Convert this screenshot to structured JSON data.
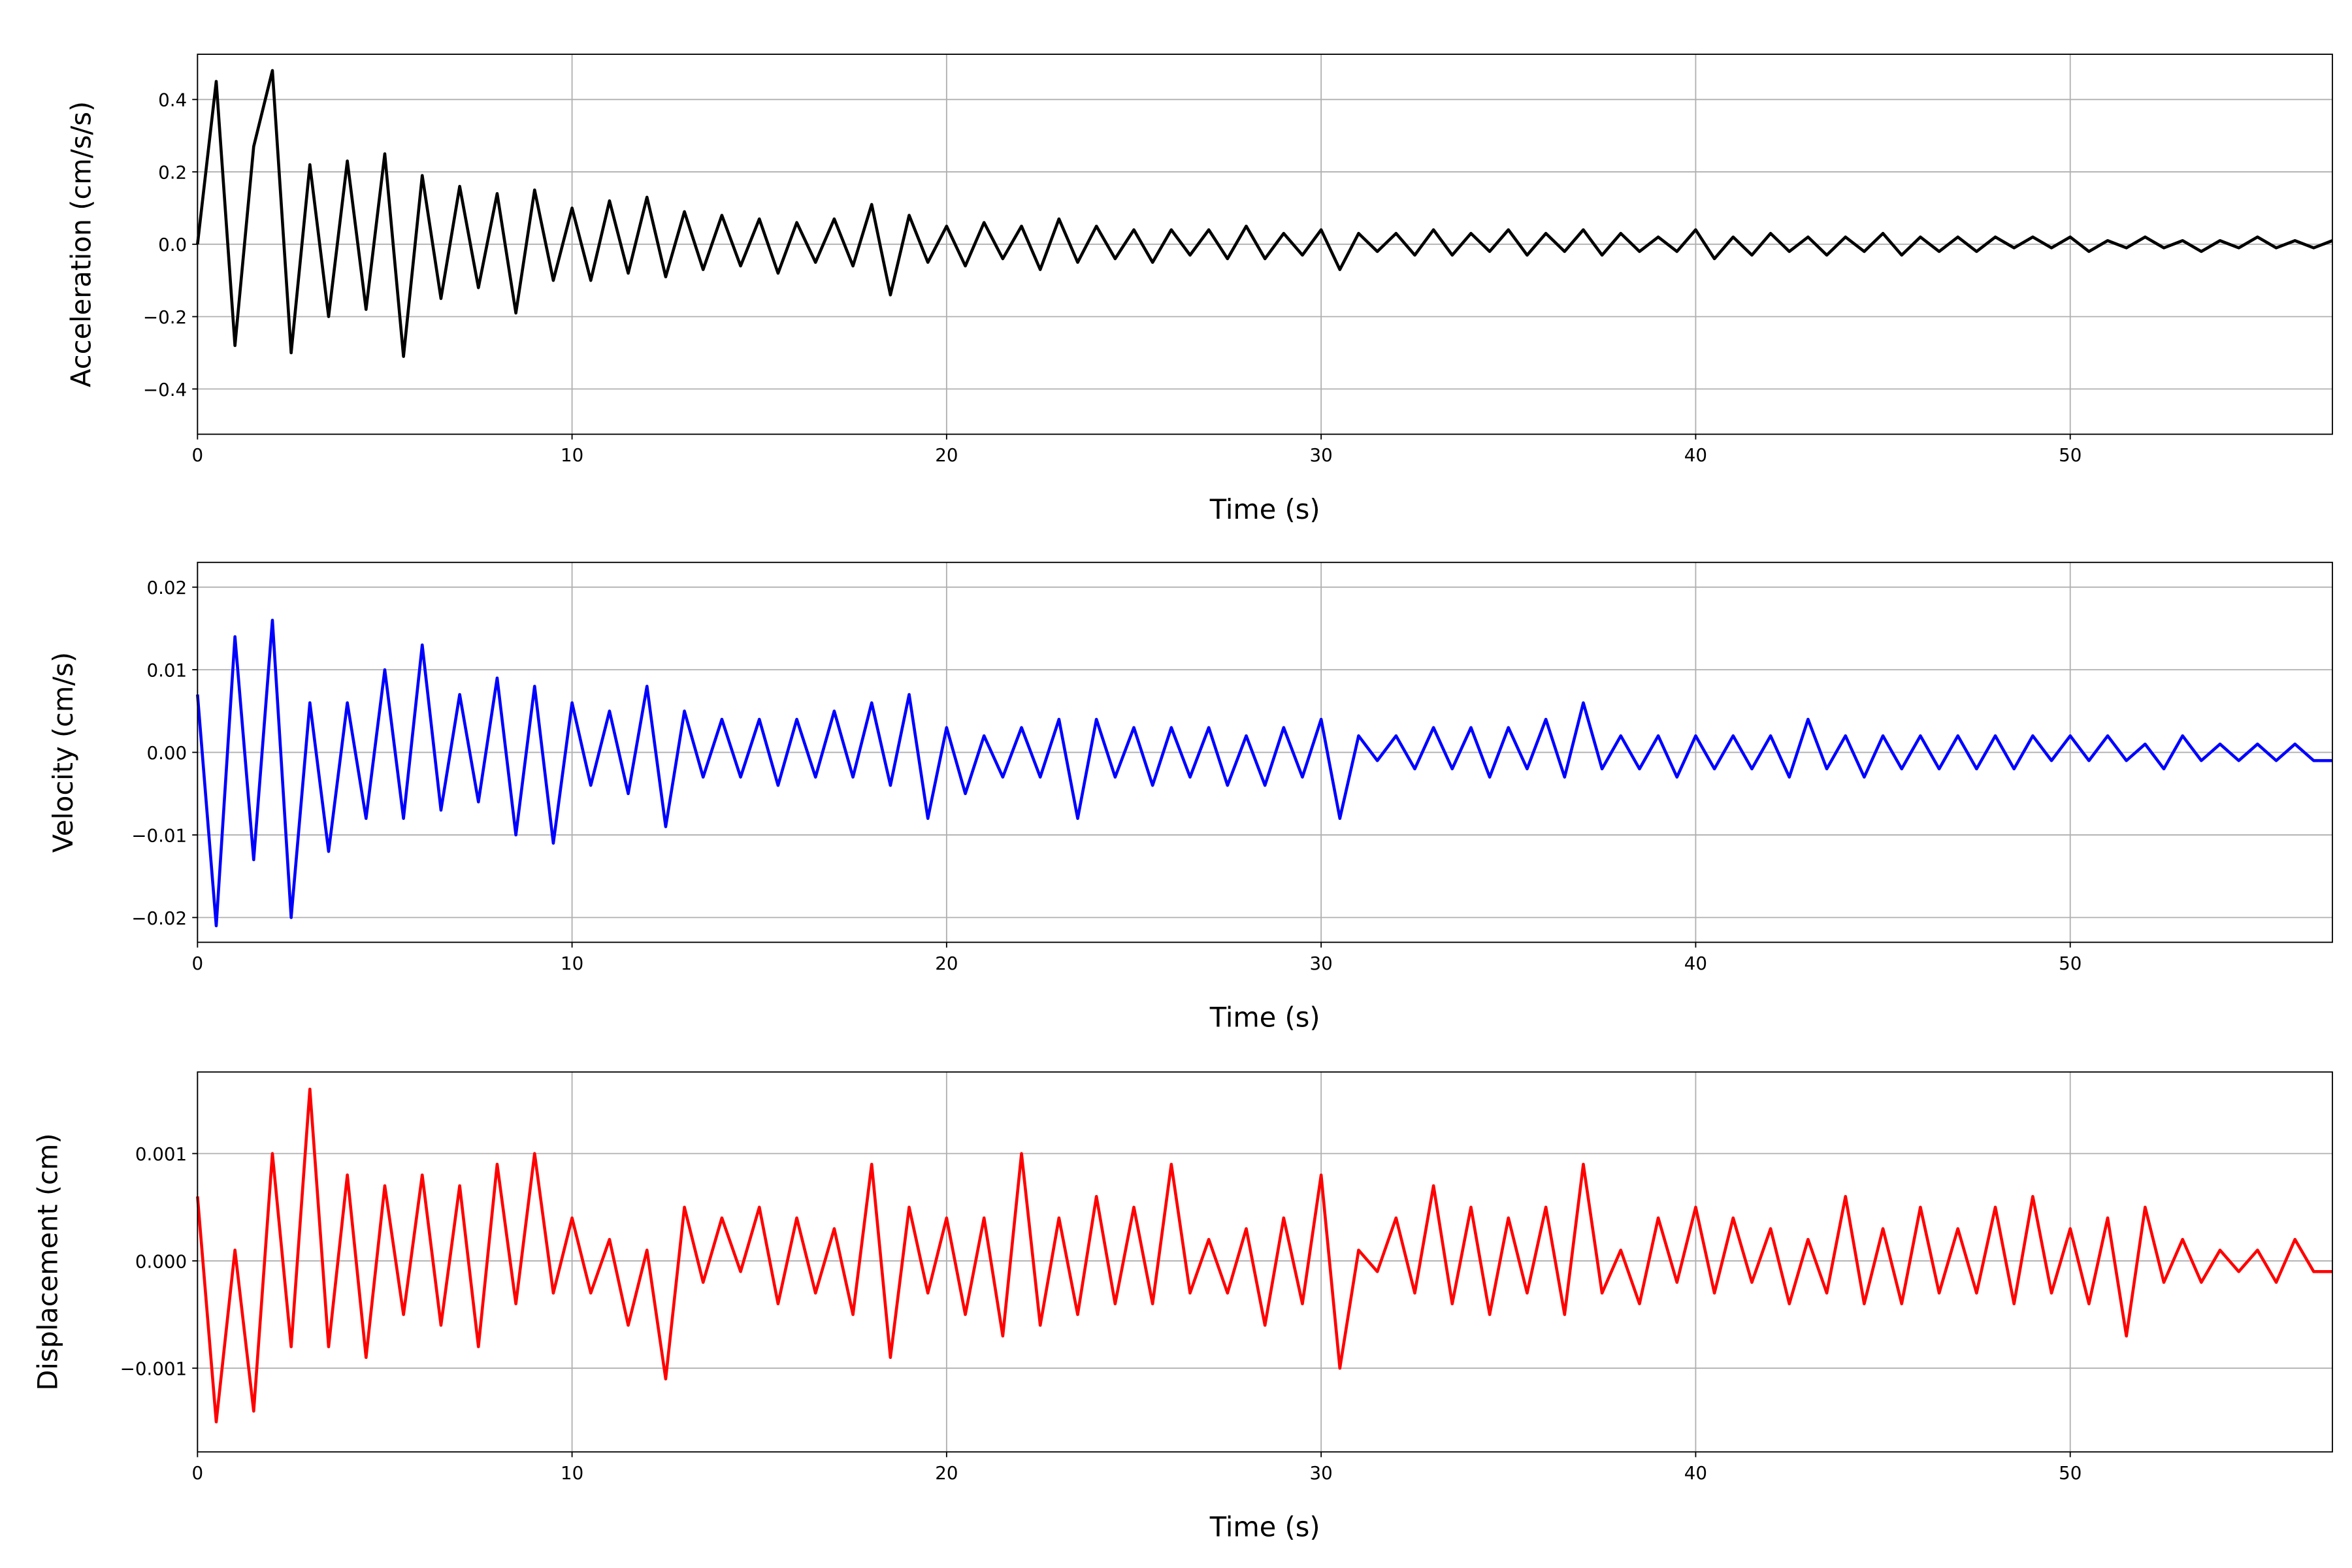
{
  "chart_data": [
    {
      "type": "line",
      "xlabel": "Time (s)",
      "ylabel": "Acceleration (cm/s/s)",
      "color": "#000000",
      "grid": true,
      "xlim": [
        0,
        57
      ],
      "xticks": [
        0,
        10,
        20,
        30,
        40,
        50
      ],
      "ylim": [
        -0.525,
        0.525
      ],
      "yticks": [
        {
          "value": -0.4,
          "label": "−0.4"
        },
        {
          "value": -0.2,
          "label": "−0.2"
        },
        {
          "value": 0,
          "label": "0.0"
        },
        {
          "value": 0.2,
          "label": "0.2"
        },
        {
          "value": 0.4,
          "label": "0.4"
        }
      ],
      "x": [
        0,
        0.5,
        1,
        1.5,
        2,
        2.5,
        3,
        3.5,
        4,
        4.5,
        5,
        5.5,
        6,
        6.5,
        7,
        7.5,
        8,
        8.5,
        9,
        9.5,
        10,
        10.5,
        11,
        11.5,
        12,
        12.5,
        13,
        13.5,
        14,
        14.5,
        15,
        15.5,
        16,
        16.5,
        17,
        17.5,
        18,
        18.5,
        19,
        19.5,
        20,
        20.5,
        21,
        21.5,
        22,
        22.5,
        23,
        23.5,
        24,
        24.5,
        25,
        25.5,
        26,
        26.5,
        27,
        27.5,
        28,
        28.5,
        29,
        29.5,
        30,
        30.5,
        31,
        31.5,
        32,
        32.5,
        33,
        33.5,
        34,
        34.5,
        35,
        35.5,
        36,
        36.5,
        37,
        37.5,
        38,
        38.5,
        39,
        39.5,
        40,
        40.5,
        41,
        41.5,
        42,
        42.5,
        43,
        43.5,
        44,
        44.5,
        45,
        45.5,
        46,
        46.5,
        47,
        47.5,
        48,
        48.5,
        49,
        49.5,
        50,
        50.5,
        51,
        51.5,
        52,
        52.5,
        53,
        53.5,
        54,
        54.5,
        55,
        55.5,
        56,
        56.5,
        57
      ],
      "values": [
        0.0,
        0.45,
        -0.28,
        0.27,
        0.48,
        -0.3,
        0.22,
        -0.2,
        0.23,
        -0.18,
        0.25,
        -0.31,
        0.19,
        -0.15,
        0.16,
        -0.12,
        0.14,
        -0.19,
        0.15,
        -0.1,
        0.1,
        -0.1,
        0.12,
        -0.08,
        0.13,
        -0.09,
        0.09,
        -0.07,
        0.08,
        -0.06,
        0.07,
        -0.08,
        0.06,
        -0.05,
        0.07,
        -0.06,
        0.11,
        -0.14,
        0.08,
        -0.05,
        0.05,
        -0.06,
        0.06,
        -0.04,
        0.05,
        -0.07,
        0.07,
        -0.05,
        0.05,
        -0.04,
        0.04,
        -0.05,
        0.04,
        -0.03,
        0.04,
        -0.04,
        0.05,
        -0.04,
        0.03,
        -0.03,
        0.04,
        -0.07,
        0.03,
        -0.02,
        0.03,
        -0.03,
        0.04,
        -0.03,
        0.03,
        -0.02,
        0.04,
        -0.03,
        0.03,
        -0.02,
        0.04,
        -0.03,
        0.03,
        -0.02,
        0.02,
        -0.02,
        0.04,
        -0.04,
        0.02,
        -0.03,
        0.03,
        -0.02,
        0.02,
        -0.03,
        0.02,
        -0.02,
        0.03,
        -0.03,
        0.02,
        -0.02,
        0.02,
        -0.02,
        0.02,
        -0.01,
        0.02,
        -0.01,
        0.02,
        -0.02,
        0.01,
        -0.01,
        0.02,
        -0.01,
        0.01,
        -0.02,
        0.01,
        -0.01,
        0.02,
        -0.01,
        0.01,
        -0.01,
        0.01
      ]
    },
    {
      "type": "line",
      "xlabel": "Time (s)",
      "ylabel": "Velocity (cm/s)",
      "color": "#0000ff",
      "grid": true,
      "xlim": [
        0,
        57
      ],
      "xticks": [
        0,
        10,
        20,
        30,
        40,
        50
      ],
      "ylim": [
        -0.023,
        0.023
      ],
      "yticks": [
        {
          "value": -0.02,
          "label": "−0.02"
        },
        {
          "value": -0.01,
          "label": "−0.01"
        },
        {
          "value": 0,
          "label": "0.00"
        },
        {
          "value": 0.01,
          "label": "0.01"
        },
        {
          "value": 0.02,
          "label": "0.02"
        }
      ],
      "x": [
        0,
        0.5,
        1,
        1.5,
        2,
        2.5,
        3,
        3.5,
        4,
        4.5,
        5,
        5.5,
        6,
        6.5,
        7,
        7.5,
        8,
        8.5,
        9,
        9.5,
        10,
        10.5,
        11,
        11.5,
        12,
        12.5,
        13,
        13.5,
        14,
        14.5,
        15,
        15.5,
        16,
        16.5,
        17,
        17.5,
        18,
        18.5,
        19,
        19.5,
        20,
        20.5,
        21,
        21.5,
        22,
        22.5,
        23,
        23.5,
        24,
        24.5,
        25,
        25.5,
        26,
        26.5,
        27,
        27.5,
        28,
        28.5,
        29,
        29.5,
        30,
        30.5,
        31,
        31.5,
        32,
        32.5,
        33,
        33.5,
        34,
        34.5,
        35,
        35.5,
        36,
        36.5,
        37,
        37.5,
        38,
        38.5,
        39,
        39.5,
        40,
        40.5,
        41,
        41.5,
        42,
        42.5,
        43,
        43.5,
        44,
        44.5,
        45,
        45.5,
        46,
        46.5,
        47,
        47.5,
        48,
        48.5,
        49,
        49.5,
        50,
        50.5,
        51,
        51.5,
        52,
        52.5,
        53,
        53.5,
        54,
        54.5,
        55,
        55.5,
        56,
        56.5,
        57
      ],
      "values": [
        0.007,
        -0.021,
        0.014,
        -0.013,
        0.016,
        -0.02,
        0.006,
        -0.012,
        0.006,
        -0.008,
        0.01,
        -0.008,
        0.013,
        -0.007,
        0.007,
        -0.006,
        0.009,
        -0.01,
        0.008,
        -0.011,
        0.006,
        -0.004,
        0.005,
        -0.005,
        0.008,
        -0.009,
        0.005,
        -0.003,
        0.004,
        -0.003,
        0.004,
        -0.004,
        0.004,
        -0.003,
        0.005,
        -0.003,
        0.006,
        -0.004,
        0.007,
        -0.008,
        0.003,
        -0.005,
        0.002,
        -0.003,
        0.003,
        -0.003,
        0.004,
        -0.008,
        0.004,
        -0.003,
        0.003,
        -0.004,
        0.003,
        -0.003,
        0.003,
        -0.004,
        0.002,
        -0.004,
        0.003,
        -0.003,
        0.004,
        -0.008,
        0.002,
        -0.001,
        0.002,
        -0.002,
        0.003,
        -0.002,
        0.003,
        -0.003,
        0.003,
        -0.002,
        0.004,
        -0.003,
        0.006,
        -0.002,
        0.002,
        -0.002,
        0.002,
        -0.003,
        0.002,
        -0.002,
        0.002,
        -0.002,
        0.002,
        -0.003,
        0.004,
        -0.002,
        0.002,
        -0.003,
        0.002,
        -0.002,
        0.002,
        -0.002,
        0.002,
        -0.002,
        0.002,
        -0.002,
        0.002,
        -0.001,
        0.002,
        -0.001,
        0.002,
        -0.001,
        0.001,
        -0.002,
        0.002,
        -0.001,
        0.001,
        -0.001,
        0.001,
        -0.001,
        0.001,
        -0.001,
        -0.001
      ]
    },
    {
      "type": "line",
      "xlabel": "Time (s)",
      "ylabel": "Displacement (cm)",
      "color": "#ff0000",
      "grid": true,
      "xlim": [
        0,
        57
      ],
      "xticks": [
        0,
        10,
        20,
        30,
        40,
        50
      ],
      "ylim": [
        -0.00178,
        0.00176
      ],
      "yticks": [
        {
          "value": -0.001,
          "label": "−0.001"
        },
        {
          "value": 0,
          "label": "0.000"
        },
        {
          "value": 0.001,
          "label": "0.001"
        }
      ],
      "x": [
        0,
        0.5,
        1,
        1.5,
        2,
        2.5,
        3,
        3.5,
        4,
        4.5,
        5,
        5.5,
        6,
        6.5,
        7,
        7.5,
        8,
        8.5,
        9,
        9.5,
        10,
        10.5,
        11,
        11.5,
        12,
        12.5,
        13,
        13.5,
        14,
        14.5,
        15,
        15.5,
        16,
        16.5,
        17,
        17.5,
        18,
        18.5,
        19,
        19.5,
        20,
        20.5,
        21,
        21.5,
        22,
        22.5,
        23,
        23.5,
        24,
        24.5,
        25,
        25.5,
        26,
        26.5,
        27,
        27.5,
        28,
        28.5,
        29,
        29.5,
        30,
        30.5,
        31,
        31.5,
        32,
        32.5,
        33,
        33.5,
        34,
        34.5,
        35,
        35.5,
        36,
        36.5,
        37,
        37.5,
        38,
        38.5,
        39,
        39.5,
        40,
        40.5,
        41,
        41.5,
        42,
        42.5,
        43,
        43.5,
        44,
        44.5,
        45,
        45.5,
        46,
        46.5,
        47,
        47.5,
        48,
        48.5,
        49,
        49.5,
        50,
        50.5,
        51,
        51.5,
        52,
        52.5,
        53,
        53.5,
        54,
        54.5,
        55,
        55.5,
        56,
        56.5,
        57
      ],
      "values": [
        0.0006,
        -0.0015,
        0.0001,
        -0.0014,
        0.001,
        -0.0008,
        0.0016,
        -0.0008,
        0.0008,
        -0.0009,
        0.0007,
        -0.0005,
        0.0008,
        -0.0006,
        0.0007,
        -0.0008,
        0.0009,
        -0.0004,
        0.001,
        -0.0003,
        0.0004,
        -0.0003,
        0.0002,
        -0.0006,
        0.0001,
        -0.0011,
        0.0005,
        -0.0002,
        0.0004,
        -0.0001,
        0.0005,
        -0.0004,
        0.0004,
        -0.0003,
        0.0003,
        -0.0005,
        0.0009,
        -0.0009,
        0.0005,
        -0.0003,
        0.0004,
        -0.0005,
        0.0004,
        -0.0007,
        0.001,
        -0.0006,
        0.0004,
        -0.0005,
        0.0006,
        -0.0004,
        0.0005,
        -0.0004,
        0.0009,
        -0.0003,
        0.0002,
        -0.0003,
        0.0003,
        -0.0006,
        0.0004,
        -0.0004,
        0.0008,
        -0.001,
        0.0001,
        -0.0001,
        0.0004,
        -0.0003,
        0.0007,
        -0.0004,
        0.0005,
        -0.0005,
        0.0004,
        -0.0003,
        0.0005,
        -0.0005,
        0.0009,
        -0.0003,
        0.0001,
        -0.0004,
        0.0004,
        -0.0002,
        0.0005,
        -0.0003,
        0.0004,
        -0.0002,
        0.0003,
        -0.0004,
        0.0002,
        -0.0003,
        0.0006,
        -0.0004,
        0.0003,
        -0.0004,
        0.0005,
        -0.0003,
        0.0003,
        -0.0003,
        0.0005,
        -0.0004,
        0.0006,
        -0.0003,
        0.0003,
        -0.0004,
        0.0004,
        -0.0007,
        0.0005,
        -0.0002,
        0.0002,
        -0.0002,
        0.0001,
        -0.0001,
        0.0001,
        -0.0002,
        0.0002,
        -0.0001,
        -0.0001
      ]
    }
  ]
}
